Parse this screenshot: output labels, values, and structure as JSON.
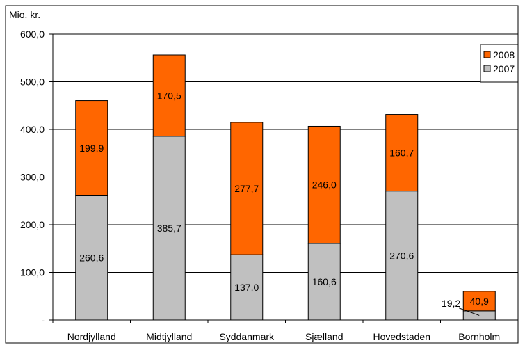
{
  "chart_data": {
    "type": "bar",
    "stacked": true,
    "title": "",
    "ylabel": "Mio. kr.",
    "xlabel": "",
    "ylim": [
      0,
      600
    ],
    "yticks": [
      0,
      100,
      200,
      300,
      400,
      500,
      600
    ],
    "ytick_labels": [
      "-",
      "100,0",
      "200,0",
      "300,0",
      "400,0",
      "500,0",
      "600,0"
    ],
    "grid": true,
    "legend_position": "top-right",
    "categories": [
      "Nordjylland",
      "Midtjylland",
      "Syddanmark",
      "Sjælland",
      "Hovedstaden",
      "Bornholm"
    ],
    "series": [
      {
        "name": "2007",
        "color": "#c0c0c0",
        "values": [
          260.6,
          385.7,
          137.0,
          160.6,
          270.6,
          19.2
        ],
        "labels": [
          "260,6",
          "385,7",
          "137,0",
          "160,6",
          "270,6",
          "19,2"
        ]
      },
      {
        "name": "2008",
        "color": "#ff6600",
        "values": [
          199.9,
          170.5,
          277.7,
          246.0,
          160.7,
          40.9
        ],
        "labels": [
          "199,9",
          "170,5",
          "277,7",
          "246,0",
          "160,7",
          "40,9"
        ]
      }
    ],
    "legend_order": [
      "2008",
      "2007"
    ]
  }
}
